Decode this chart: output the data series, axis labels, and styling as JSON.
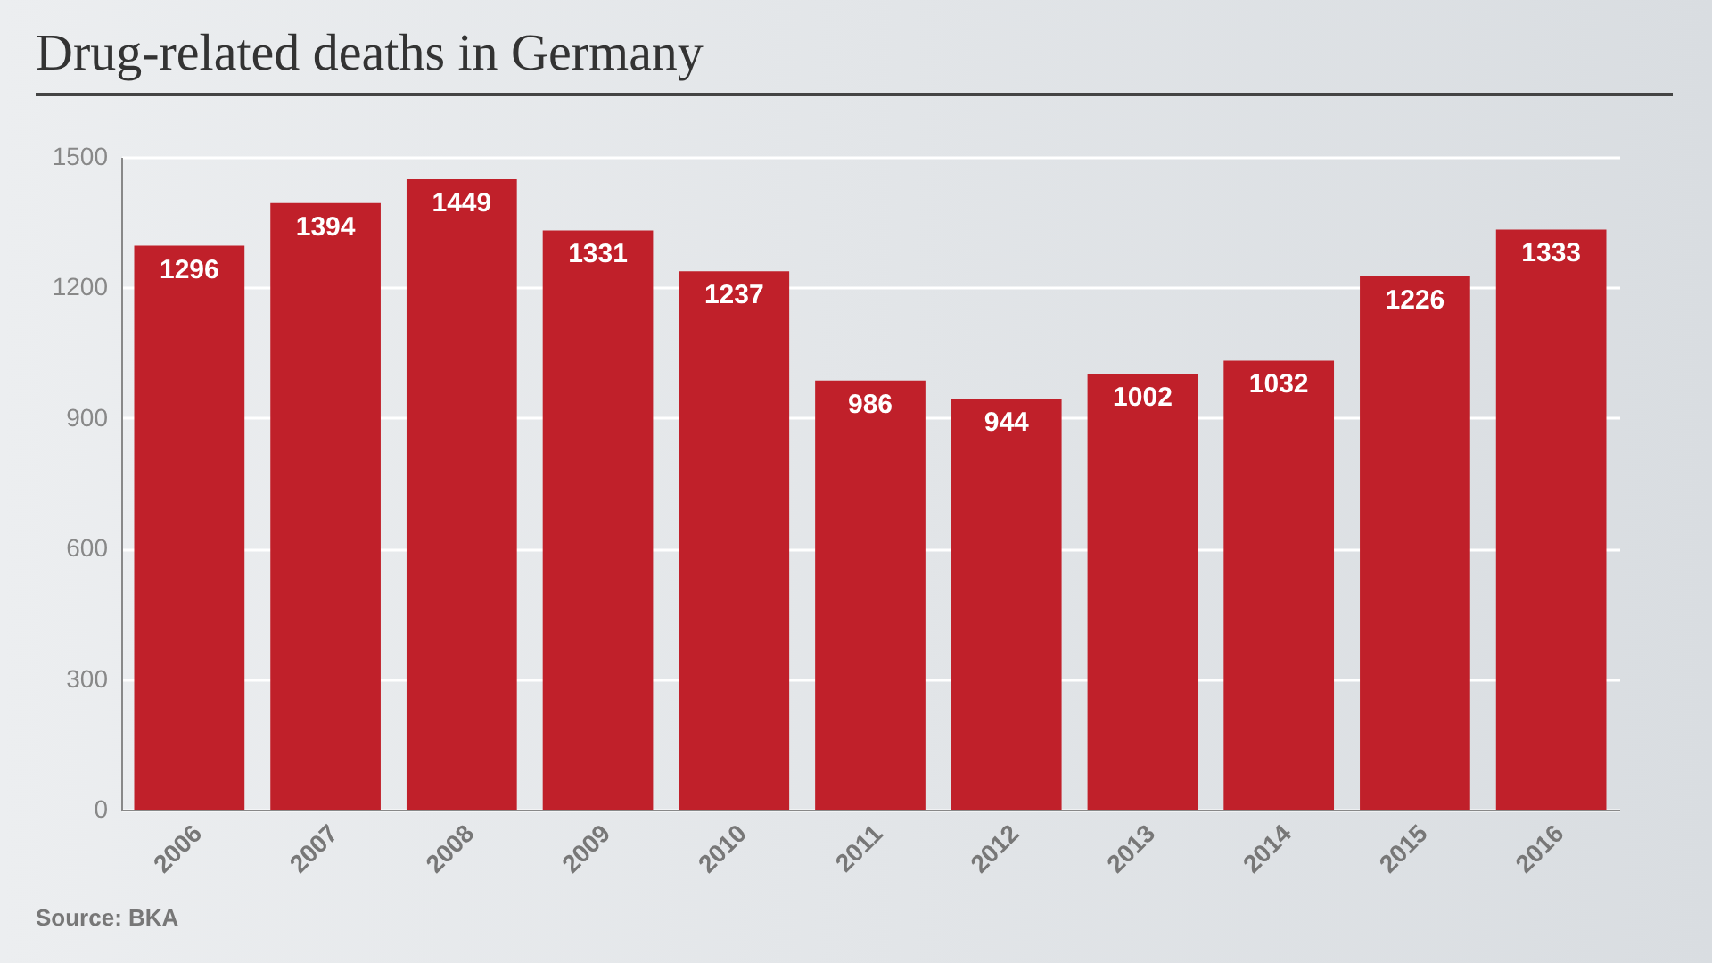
{
  "chart_data": {
    "type": "bar",
    "title": "Drug-related deaths in Germany",
    "categories": [
      "2006",
      "2007",
      "2008",
      "2009",
      "2010",
      "2011",
      "2012",
      "2013",
      "2014",
      "2015",
      "2016"
    ],
    "values": [
      1296,
      1394,
      1449,
      1331,
      1237,
      986,
      944,
      1002,
      1032,
      1226,
      1333
    ],
    "color": "#c0202a",
    "ylim": [
      0,
      1500
    ],
    "yticks": [
      0,
      300,
      600,
      900,
      1200,
      1500
    ],
    "grid": "y",
    "data_labels": true,
    "annotations": [
      "Source: BKA"
    ]
  }
}
